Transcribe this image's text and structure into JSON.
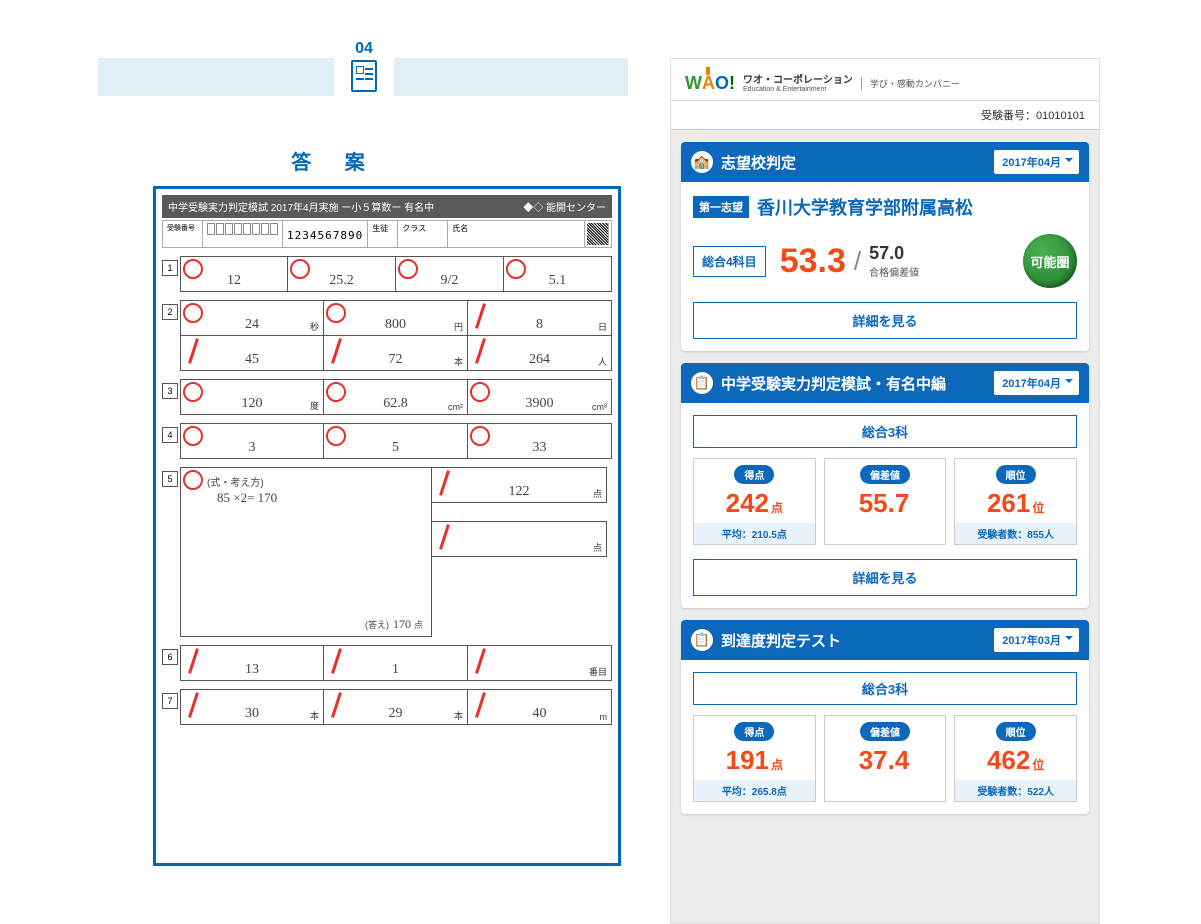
{
  "left": {
    "section_num": "04",
    "section_title": "答 案",
    "sheet_header_left": "中学受験実力判定模試 2017年4月実施 ー小５算数ー 有名中",
    "sheet_header_right": "◆◇ 能開センター",
    "sheet_digits": "1234567890",
    "questions": {
      "q1": [
        {
          "val": "12",
          "mark": "o"
        },
        {
          "val": "25.2",
          "mark": "o"
        },
        {
          "val": "9/2",
          "mark": "o"
        },
        {
          "val": "5.1",
          "mark": "o"
        }
      ],
      "q2a": [
        {
          "val": "24",
          "unit": "秒",
          "mark": "o"
        },
        {
          "val": "800",
          "unit": "円",
          "mark": "o"
        },
        {
          "val": "8",
          "unit": "日",
          "mark": "x"
        }
      ],
      "q2b": [
        {
          "val": "45",
          "mark": "x"
        },
        {
          "val": "72",
          "unit": "本",
          "mark": "x"
        },
        {
          "val": "264",
          "unit": "人",
          "mark": "x"
        }
      ],
      "q3": [
        {
          "val": "120",
          "unit": "度",
          "mark": "o"
        },
        {
          "val": "62.8",
          "unit": "cm²",
          "mark": "o"
        },
        {
          "val": "3900",
          "unit": "cm³",
          "mark": "o"
        }
      ],
      "q4": [
        {
          "val": "3",
          "mark": "o"
        },
        {
          "val": "5",
          "mark": "o"
        },
        {
          "val": "33",
          "mark": "o"
        }
      ],
      "q5": {
        "work_label": "(式・考え方)",
        "work_text": "85 ×2= 170",
        "ans_label": "(答え)",
        "ans_val": "170",
        "ans_unit": "点",
        "right": [
          {
            "val": "122",
            "unit": "点",
            "mark": "x"
          },
          {
            "val": "",
            "unit": "点",
            "mark": "x"
          }
        ]
      },
      "q6": [
        {
          "val": "13",
          "mark": "x"
        },
        {
          "val": "1",
          "mark": "x"
        },
        {
          "val": "",
          "unit": "番目",
          "mark": "x"
        }
      ],
      "q7": [
        {
          "val": "30",
          "unit": "本",
          "mark": "x"
        },
        {
          "val": "29",
          "unit": "本",
          "mark": "x"
        },
        {
          "val": "40",
          "unit": "m",
          "mark": "x"
        }
      ]
    }
  },
  "right": {
    "logo_line1": "ワオ・コーポレーション",
    "logo_line2": "Education & Entertainment",
    "logo_tag": "学び・感動カンパニー",
    "id_label": "受験番号：",
    "id_value": "01010101",
    "card1": {
      "title": "志望校判定",
      "date": "2017年04月",
      "choice_badge": "第一志望",
      "school": "香川大学教育学部附属高松",
      "subject": "総合4科目",
      "score": "53.3",
      "pass_score": "57.0",
      "pass_label": "合格偏差値",
      "judge": "可能圏",
      "detail": "詳細を見る"
    },
    "card2": {
      "title": "中学受験実力判定模試・有名中編",
      "date": "2017年04月",
      "tab": "総合3科",
      "stats": [
        {
          "label": "得点",
          "val": "242",
          "unit": "点",
          "foot": "平均：210.5点"
        },
        {
          "label": "偏差値",
          "val": "55.7",
          "unit": "",
          "foot": ""
        },
        {
          "label": "順位",
          "val": "261",
          "unit": "位",
          "foot": "受験者数：855人"
        }
      ],
      "detail": "詳細を見る"
    },
    "card3": {
      "title": "到達度判定テスト",
      "date": "2017年03月",
      "tab": "総合3科",
      "stats": [
        {
          "label": "得点",
          "val": "191",
          "unit": "点",
          "foot": "平均：265.8点"
        },
        {
          "label": "偏差値",
          "val": "37.4",
          "unit": "",
          "foot": ""
        },
        {
          "label": "順位",
          "val": "462",
          "unit": "位",
          "foot": "受験者数：522人"
        }
      ]
    }
  }
}
